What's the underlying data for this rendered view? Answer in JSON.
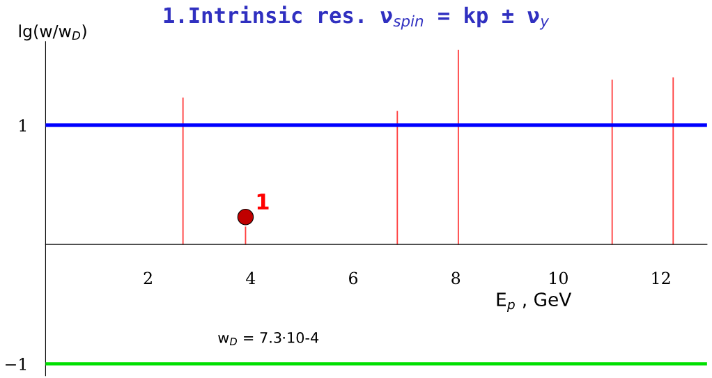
{
  "chart_data": {
    "type": "bar",
    "title": "1.Intrinsic res. ν$_{spin}$ = kp ± ν$_{y}$",
    "ylabel": "lg(w/w$_{D}$)",
    "xlabel": "E$_{p}$ , GeV",
    "series": [
      {
        "color": "#ff4040",
        "x": [
          2.68,
          3.9,
          6.86,
          8.05,
          11.05,
          12.24
        ],
        "values": [
          1.23,
          0.15,
          1.12,
          1.63,
          1.38,
          1.4
        ]
      },
      {
        "type": "scatter",
        "color": "#c00000",
        "x": [
          3.9
        ],
        "values": [
          0.23
        ]
      }
    ],
    "annotations": [
      {
        "text": "1",
        "x": 3.9,
        "y": 0.23
      },
      "w$_{D}$ = 7.3·10-4"
    ],
    "ref_lines": [
      {
        "axis": "y",
        "value": 1,
        "color": "#0000ff"
      },
      {
        "axis": "y",
        "value": -1,
        "color": "#00e000"
      }
    ],
    "xlim": [
      0,
      12.9
    ],
    "ylim": [
      -1.1,
      1.7
    ],
    "xticks": [
      2,
      4,
      6,
      8,
      10,
      12
    ],
    "yticks": [
      1,
      -1
    ],
    "grid": false,
    "legend": false,
    "marker": "circle"
  }
}
